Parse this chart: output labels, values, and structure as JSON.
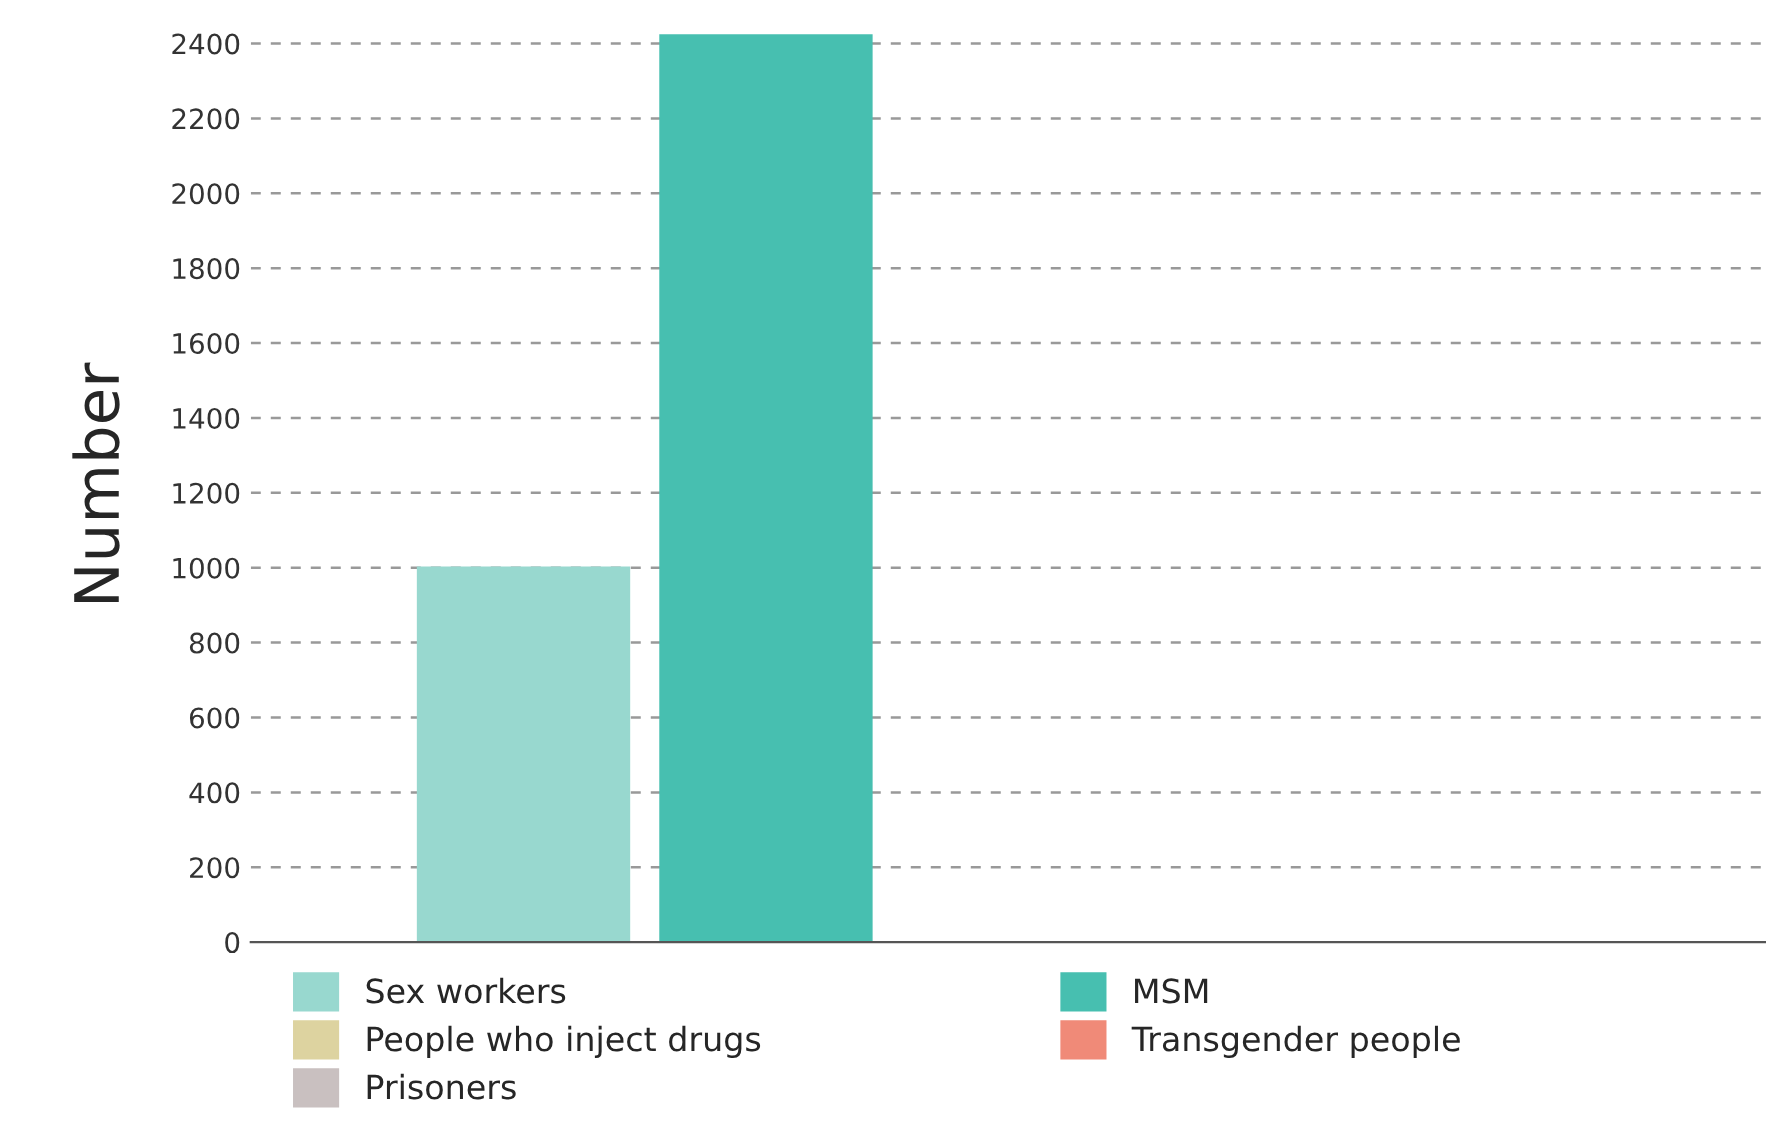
{
  "chart_data": {
    "type": "bar",
    "ylabel": "Number",
    "categories": [
      null
    ],
    "series": [
      {
        "name": "Sex workers",
        "color": "#98d8cf",
        "values": [
          1003
        ]
      },
      {
        "name": "MSM",
        "color": "#47bfb0",
        "values": [
          2425
        ]
      },
      {
        "name": "People who inject drugs",
        "color": "#ddd3a0",
        "values": [
          null
        ]
      },
      {
        "name": "Transgender people",
        "color": "#f08a78",
        "values": [
          null
        ]
      },
      {
        "name": "Prisoners",
        "color": "#c9c0c0",
        "values": [
          null
        ]
      }
    ],
    "ylim": [
      0,
      2440
    ],
    "yticks": [
      0,
      200,
      400,
      600,
      800,
      1000,
      1200,
      1400,
      1600,
      1800,
      2000,
      2200,
      2400
    ],
    "grid": "y",
    "legend": "bottom"
  }
}
